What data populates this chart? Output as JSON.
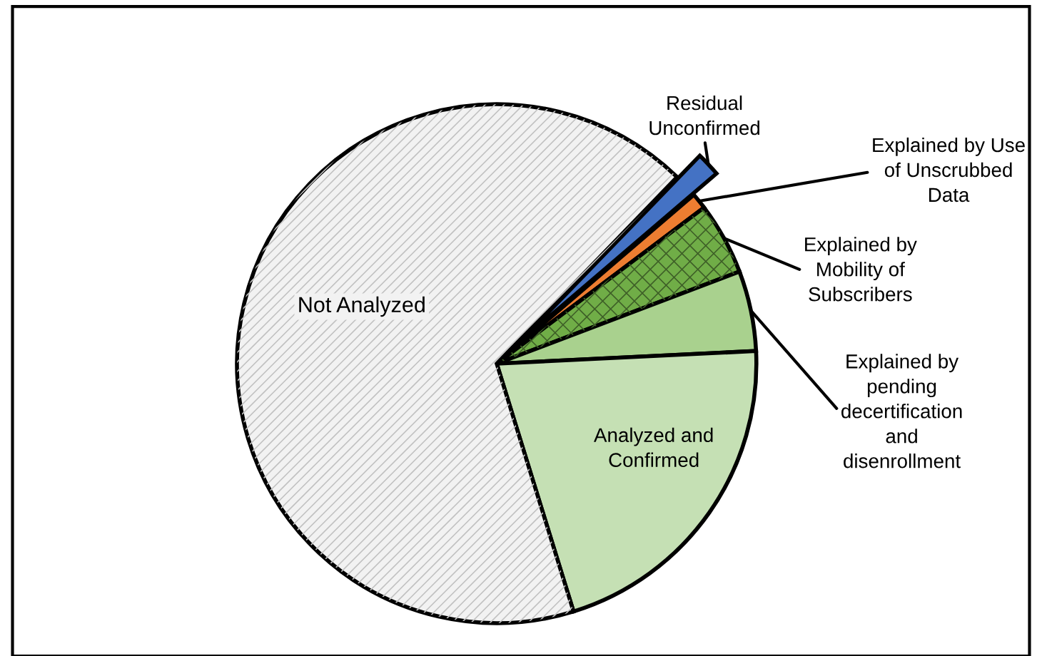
{
  "chart_data": {
    "type": "pie",
    "legend": false,
    "categories": [
      "Residual Unconfirmed",
      "Explained by Use of Unscrubbed Data",
      "Explained by Mobility of Subscribers",
      "Explained by pending decertification and disenrollment",
      "Analyzed and Confirmed",
      "Not Analyzed"
    ],
    "values": [
      1.5,
      1,
      4.5,
      5,
      21,
      67
    ],
    "colors": [
      "#4472c4",
      "#ed7d31",
      "#70ad47",
      "#a9d18e",
      "#c5e0b4",
      "#f2f2f2"
    ]
  }
}
